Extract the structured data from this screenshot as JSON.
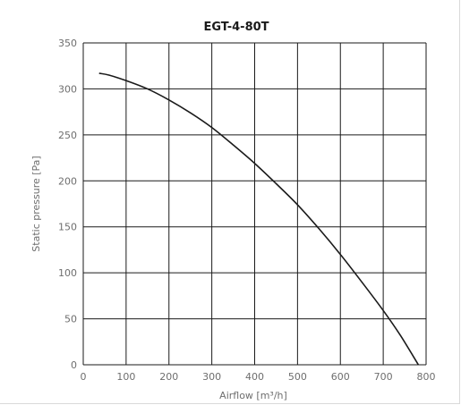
{
  "chart_data": {
    "type": "line",
    "title": "EGT-4-80T",
    "xlabel": "Airflow [m³/h]",
    "ylabel": "Static pressure [Pa]",
    "xlim": [
      0,
      800
    ],
    "ylim": [
      0,
      350
    ],
    "xticks": [
      0,
      100,
      200,
      300,
      400,
      500,
      600,
      700,
      800
    ],
    "yticks": [
      0,
      50,
      100,
      150,
      200,
      250,
      300,
      350
    ],
    "grid": true,
    "series": [
      {
        "color": "#1a1a1a",
        "x": [
          37,
          60,
          100,
          150,
          200,
          250,
          300,
          350,
          400,
          450,
          500,
          550,
          600,
          650,
          700,
          740,
          782
        ],
        "y": [
          317,
          315,
          309,
          300,
          288,
          274,
          258,
          239,
          219,
          197,
          174,
          148,
          120,
          90,
          59,
          32,
          0
        ]
      }
    ]
  }
}
